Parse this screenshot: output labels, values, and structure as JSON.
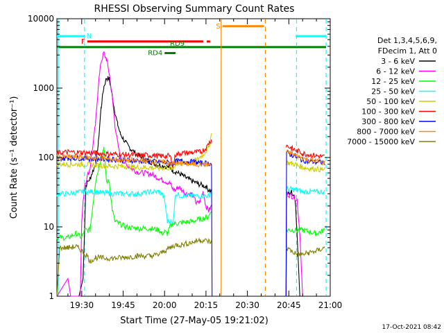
{
  "chart_data": {
    "type": "line",
    "title": "RHESSI Observing Summary Count Rates",
    "xlabel": "Start Time (27-May-05 19:21:02)",
    "ylabel": "Count Rate (s⁻¹ detector⁻¹)",
    "x_unit": "minutes after 19:00 UT",
    "x_range": [
      21,
      120
    ],
    "y_range": [
      1,
      10000
    ],
    "y_scale": "log",
    "x_ticks": [
      {
        "value": 30,
        "label": "19:30"
      },
      {
        "value": 45,
        "label": "19:45"
      },
      {
        "value": 60,
        "label": "20:00"
      },
      {
        "value": 75,
        "label": "20:15"
      },
      {
        "value": 90,
        "label": "20:30"
      },
      {
        "value": 105,
        "label": "20:45"
      },
      {
        "value": 120,
        "label": "21:00"
      }
    ],
    "y_ticks": [
      {
        "value": 1,
        "label": "1"
      },
      {
        "value": 10,
        "label": "10"
      },
      {
        "value": 100,
        "label": "100"
      },
      {
        "value": 1000,
        "label": "1000"
      },
      {
        "value": 10000,
        "label": "10000"
      }
    ],
    "legend_header": [
      "Det 1,3,4,5,6,9,",
      "FDecim 1, Att 0"
    ],
    "legend_position": "right",
    "series": [
      {
        "name": "3 - 6 keV",
        "color": "#000000",
        "points": [
          [
            21,
            1
          ],
          [
            29,
            1
          ],
          [
            30.5,
            1.8
          ],
          [
            31.5,
            40
          ],
          [
            33,
            50
          ],
          [
            35,
            80
          ],
          [
            36,
            160
          ],
          [
            37,
            520
          ],
          [
            38,
            1050
          ],
          [
            39,
            1400
          ],
          [
            40,
            1350
          ],
          [
            41,
            800
          ],
          [
            42,
            450
          ],
          [
            43,
            300
          ],
          [
            44,
            220
          ],
          [
            46,
            160
          ],
          [
            48,
            130
          ],
          [
            50,
            110
          ],
          [
            54,
            90
          ],
          [
            57,
            80
          ],
          [
            60,
            75
          ],
          [
            62,
            72
          ],
          [
            63,
            65
          ],
          [
            65,
            60
          ],
          [
            66.5,
            55
          ],
          [
            68,
            50
          ],
          [
            72,
            42
          ],
          [
            75,
            38
          ],
          [
            76,
            34
          ],
          [
            77,
            32
          ],
          [
            null,
            null
          ],
          [
            104,
            1
          ],
          [
            104.2,
            30
          ],
          [
            106,
            32
          ],
          [
            107,
            28
          ],
          [
            107.5,
            20
          ],
          [
            108,
            8
          ],
          [
            109,
            1
          ]
        ]
      },
      {
        "name": "6 - 12 keV",
        "color": "#ff00ff",
        "points": [
          [
            21,
            1
          ],
          [
            25,
            1.8
          ],
          [
            26,
            1
          ],
          [
            29.5,
            1
          ],
          [
            30,
            12
          ],
          [
            31,
            40
          ],
          [
            33,
            70
          ],
          [
            35,
            300
          ],
          [
            36,
            1100
          ],
          [
            37,
            2400
          ],
          [
            38,
            3200
          ],
          [
            39,
            2600
          ],
          [
            40,
            1600
          ],
          [
            41,
            800
          ],
          [
            42,
            300
          ],
          [
            43,
            160
          ],
          [
            44,
            100
          ],
          [
            46,
            80
          ],
          [
            48,
            70
          ],
          [
            50,
            62
          ],
          [
            55,
            58
          ],
          [
            58,
            50
          ],
          [
            60,
            46
          ],
          [
            62,
            42
          ],
          [
            63,
            35
          ],
          [
            64,
            34
          ],
          [
            65,
            38
          ],
          [
            66,
            35
          ],
          [
            67,
            32
          ],
          [
            68,
            30
          ],
          [
            70,
            30
          ],
          [
            71.5,
            22
          ],
          [
            72.5,
            22
          ],
          [
            73,
            24
          ],
          [
            74,
            32
          ],
          [
            75,
            20
          ],
          [
            76,
            17
          ],
          [
            77,
            20
          ],
          [
            null,
            null
          ],
          [
            104,
            1
          ],
          [
            104.2,
            30
          ],
          [
            106,
            28
          ],
          [
            108,
            25
          ],
          [
            109,
            8
          ],
          [
            110,
            1
          ]
        ]
      },
      {
        "name": "12 - 25 keV",
        "color": "#00ff00",
        "points": [
          [
            21,
            7
          ],
          [
            25,
            7
          ],
          [
            28,
            8
          ],
          [
            30,
            7
          ],
          [
            31,
            9
          ],
          [
            33,
            9
          ],
          [
            35,
            45
          ],
          [
            37,
            100
          ],
          [
            38,
            140
          ],
          [
            39,
            45
          ],
          [
            40,
            45
          ],
          [
            41,
            18
          ],
          [
            42,
            12
          ],
          [
            44,
            11
          ],
          [
            46,
            10
          ],
          [
            50,
            9.5
          ],
          [
            55,
            9.5
          ],
          [
            58,
            9
          ],
          [
            59,
            8
          ],
          [
            60,
            8.5
          ],
          [
            61,
            8
          ],
          [
            62,
            10
          ],
          [
            63,
            11
          ],
          [
            66,
            11.5
          ],
          [
            70,
            12
          ],
          [
            73,
            13
          ],
          [
            76,
            14
          ],
          [
            77,
            18
          ],
          [
            null,
            null
          ],
          [
            104,
            9
          ],
          [
            106,
            9
          ],
          [
            110,
            9
          ],
          [
            115,
            8
          ],
          [
            118,
            9
          ]
        ]
      },
      {
        "name": "25 - 50 keV",
        "color": "#00ffff",
        "points": [
          [
            21,
            30
          ],
          [
            25,
            30
          ],
          [
            30,
            32
          ],
          [
            35,
            32
          ],
          [
            40,
            30
          ],
          [
            45,
            30
          ],
          [
            50,
            30
          ],
          [
            55,
            32
          ],
          [
            58,
            32
          ],
          [
            59,
            30
          ],
          [
            60,
            25
          ],
          [
            61,
            12
          ],
          [
            62,
            12
          ],
          [
            63,
            11
          ],
          [
            64,
            30
          ],
          [
            66,
            28
          ],
          [
            70,
            28
          ],
          [
            75,
            28
          ],
          [
            76,
            28
          ],
          [
            77,
            32
          ],
          [
            null,
            null
          ],
          [
            104,
            35
          ],
          [
            106,
            35
          ],
          [
            108,
            34
          ],
          [
            110,
            32
          ],
          [
            112,
            32
          ],
          [
            115,
            32
          ],
          [
            118,
            32
          ]
        ]
      },
      {
        "name": "50 - 100 keV",
        "color": "#cccc00",
        "points": [
          [
            21,
            80
          ],
          [
            25,
            80
          ],
          [
            30,
            80
          ],
          [
            35,
            78
          ],
          [
            40,
            75
          ],
          [
            45,
            75
          ],
          [
            50,
            72
          ],
          [
            55,
            72
          ],
          [
            58,
            70
          ],
          [
            60,
            72
          ],
          [
            62,
            70
          ],
          [
            63,
            68
          ],
          [
            64,
            82
          ],
          [
            66,
            82
          ],
          [
            70,
            85
          ],
          [
            72,
            95
          ],
          [
            74,
            110
          ],
          [
            76,
            140
          ],
          [
            77,
            220
          ],
          [
            null,
            null
          ],
          [
            104,
            85
          ],
          [
            106,
            82
          ],
          [
            108,
            78
          ],
          [
            110,
            72
          ],
          [
            112,
            70
          ],
          [
            115,
            68
          ],
          [
            118,
            66
          ]
        ]
      },
      {
        "name": "100 - 300 keV",
        "color": "#ff0000",
        "points": [
          [
            21,
            115
          ],
          [
            25,
            120
          ],
          [
            30,
            118
          ],
          [
            35,
            115
          ],
          [
            40,
            112
          ],
          [
            45,
            110
          ],
          [
            50,
            108
          ],
          [
            55,
            108
          ],
          [
            58,
            105
          ],
          [
            60,
            105
          ],
          [
            62,
            105
          ],
          [
            63,
            75
          ],
          [
            64,
            110
          ],
          [
            66,
            115
          ],
          [
            70,
            118
          ],
          [
            73,
            120
          ],
          [
            75,
            135
          ],
          [
            76,
            160
          ],
          [
            77,
            180
          ],
          [
            null,
            null
          ],
          [
            104,
            150
          ],
          [
            106,
            135
          ],
          [
            108,
            125
          ],
          [
            110,
            115
          ],
          [
            112,
            110
          ],
          [
            115,
            106
          ],
          [
            118,
            102
          ]
        ]
      },
      {
        "name": "300 - 800 keV",
        "color": "#0000ff",
        "points": [
          [
            21,
            95
          ],
          [
            25,
            98
          ],
          [
            30,
            98
          ],
          [
            35,
            95
          ],
          [
            40,
            95
          ],
          [
            45,
            92
          ],
          [
            50,
            90
          ],
          [
            55,
            88
          ],
          [
            58,
            86
          ],
          [
            60,
            85
          ],
          [
            62,
            84
          ],
          [
            63,
            80
          ],
          [
            64,
            88
          ],
          [
            66,
            88
          ],
          [
            70,
            86
          ],
          [
            73,
            84
          ],
          [
            76,
            82
          ],
          [
            77,
            80
          ],
          [
            77.2,
            1
          ],
          [
            null,
            null
          ],
          [
            104,
            1
          ],
          [
            104.2,
            115
          ],
          [
            106,
            110
          ],
          [
            108,
            100
          ],
          [
            110,
            92
          ],
          [
            112,
            88
          ],
          [
            115,
            86
          ],
          [
            118,
            84
          ]
        ]
      },
      {
        "name": "800 - 7000 keV",
        "color": "#ff8800",
        "points": [
          [
            21,
            100
          ],
          [
            25,
            102
          ],
          [
            30,
            100
          ],
          [
            35,
            98
          ],
          [
            40,
            95
          ],
          [
            45,
            92
          ],
          [
            50,
            90
          ],
          [
            55,
            88
          ],
          [
            58,
            85
          ],
          [
            60,
            85
          ],
          [
            62,
            84
          ],
          [
            63,
            80
          ],
          [
            64,
            82
          ],
          [
            66,
            82
          ],
          [
            70,
            80
          ],
          [
            73,
            80
          ],
          [
            76,
            78
          ],
          [
            77,
            76
          ],
          [
            null,
            null
          ],
          [
            104,
            120
          ],
          [
            106,
            115
          ],
          [
            108,
            105
          ],
          [
            110,
            98
          ],
          [
            112,
            92
          ],
          [
            115,
            88
          ],
          [
            118,
            84
          ]
        ]
      },
      {
        "name": "7000 - 15000 keV",
        "color": "#808000",
        "points": [
          [
            21,
            1
          ],
          [
            22,
            5
          ],
          [
            25,
            5
          ],
          [
            28,
            5.2
          ],
          [
            30,
            4.5
          ],
          [
            32,
            3.8
          ],
          [
            33,
            3.2
          ],
          [
            35,
            3.6
          ],
          [
            40,
            3.5
          ],
          [
            45,
            3.6
          ],
          [
            50,
            3.8
          ],
          [
            55,
            3.8
          ],
          [
            58,
            4
          ],
          [
            60,
            4.5
          ],
          [
            62,
            5
          ],
          [
            64,
            5.5
          ],
          [
            66,
            5.5
          ],
          [
            70,
            6
          ],
          [
            73,
            6.5
          ],
          [
            76,
            6.2
          ],
          [
            77,
            6
          ],
          [
            null,
            null
          ],
          [
            104,
            5
          ],
          [
            106,
            4.5
          ],
          [
            108,
            4
          ],
          [
            110,
            4
          ],
          [
            112,
            4.2
          ],
          [
            115,
            4.5
          ],
          [
            118,
            5
          ]
        ]
      }
    ],
    "annotations": [
      {
        "label": "N",
        "color": "#00ffff",
        "x_start": 21,
        "x_end": 31,
        "y": 5600
      },
      {
        "label": "",
        "color": "#00ffff",
        "x_start": 107.5,
        "x_end": 118.5,
        "y": 5600
      },
      {
        "label": "F",
        "color": "#ff0000",
        "x_start": 32,
        "x_end": 74,
        "y": 4700
      },
      {
        "label": "",
        "color": "#ff0000",
        "x_start": 75.3,
        "x_end": 76.5,
        "y": 4700
      },
      {
        "label": "S",
        "color": "#ff8800",
        "x_start": 81,
        "x_end": 96,
        "y": 7800
      },
      {
        "label": "RD9",
        "color": "#008000",
        "x_start": 21,
        "x_end": 118.5,
        "y": 3900
      },
      {
        "label": "RD4",
        "color": "#008000",
        "x_start": 60,
        "x_end": 64,
        "y": 3200
      }
    ],
    "vertical_markers": [
      {
        "x": 31,
        "color": "#00ffff",
        "style": "dashed"
      },
      {
        "x": 107.8,
        "color": "#00ffff",
        "style": "dashed"
      },
      {
        "x": 118.5,
        "color": "#00ffff",
        "style": "dashed"
      },
      {
        "x": 80.5,
        "color": "#ff8800",
        "style": "solid"
      },
      {
        "x": 96.5,
        "color": "#ff8800",
        "style": "dashed"
      },
      {
        "x": 21.5,
        "color": "#00ffff",
        "style": "solid"
      }
    ]
  },
  "footer": {
    "timestamp": "17-Oct-2021 08:42"
  }
}
